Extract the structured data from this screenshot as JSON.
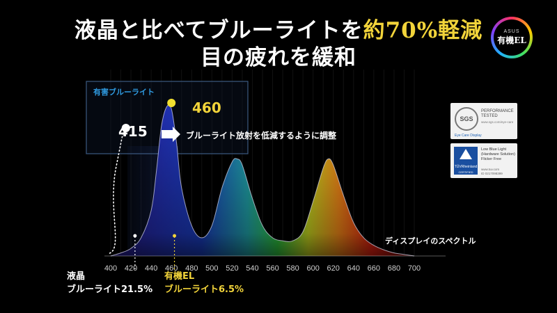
{
  "heading": {
    "line1_pre": "液晶と比べてブルーライトを",
    "line1_highlight": "約70%軽減",
    "line2": "目の疲れを緩和"
  },
  "badge": {
    "brand": "ASUS",
    "text": "有機EL"
  },
  "certs": {
    "sgs_logo": "SGS",
    "sgs_title": "PERFORMANCE TESTED",
    "sgs_sub": "www.sgs.com/eye-care",
    "sgs_footer": "Eye Care Display",
    "tuv_brand": "TÜVRheinland",
    "tuv_certified": "CERTIFIED",
    "tuv_title": "Low Blue Light (Hardware Solution) Flicker Free",
    "tuv_web": "www.tuv.com",
    "tuv_id": "ID 0217098399"
  },
  "colors": {
    "accent_yellow": "#f2d43a",
    "box_border": "#3c5a82",
    "box_label": "#2f9ae0"
  },
  "chart_data": {
    "type": "line",
    "x_ticks": [
      400,
      420,
      440,
      460,
      480,
      500,
      520,
      540,
      560,
      580,
      600,
      620,
      640,
      660,
      680,
      700
    ],
    "xlim": [
      400,
      700
    ],
    "series": [
      {
        "x": [
          400,
          410,
          420,
          430,
          440,
          445,
          450,
          455,
          460,
          465,
          470,
          480,
          490,
          500,
          510,
          520,
          525,
          530,
          540,
          550,
          560,
          570,
          580,
          590,
          600,
          610,
          615,
          620,
          630,
          640,
          650,
          660,
          670,
          680,
          690,
          700
        ],
        "y": [
          0.0,
          0.02,
          0.05,
          0.12,
          0.3,
          0.55,
          0.85,
          0.98,
          0.97,
          0.75,
          0.45,
          0.2,
          0.12,
          0.2,
          0.45,
          0.62,
          0.64,
          0.6,
          0.38,
          0.2,
          0.12,
          0.1,
          0.1,
          0.16,
          0.36,
          0.58,
          0.64,
          0.6,
          0.4,
          0.22,
          0.12,
          0.07,
          0.04,
          0.02,
          0.01,
          0.0
        ]
      }
    ],
    "lcd_peak_nm": 415,
    "oled_peak_nm": 460,
    "harmful_box_label": "有害ブルーライト",
    "shift_annotation": "ブルーライト放射を低減するように調整",
    "spectrum_label": "ディスプレイのスペクトル",
    "lcd_peak_label": "415",
    "oled_peak_label": "460"
  },
  "bottom_labels": {
    "lcd_name": "液晶",
    "lcd_value": "ブルーライト21.5%",
    "oled_name": "有機EL",
    "oled_value": "ブルーライト6.5%"
  }
}
